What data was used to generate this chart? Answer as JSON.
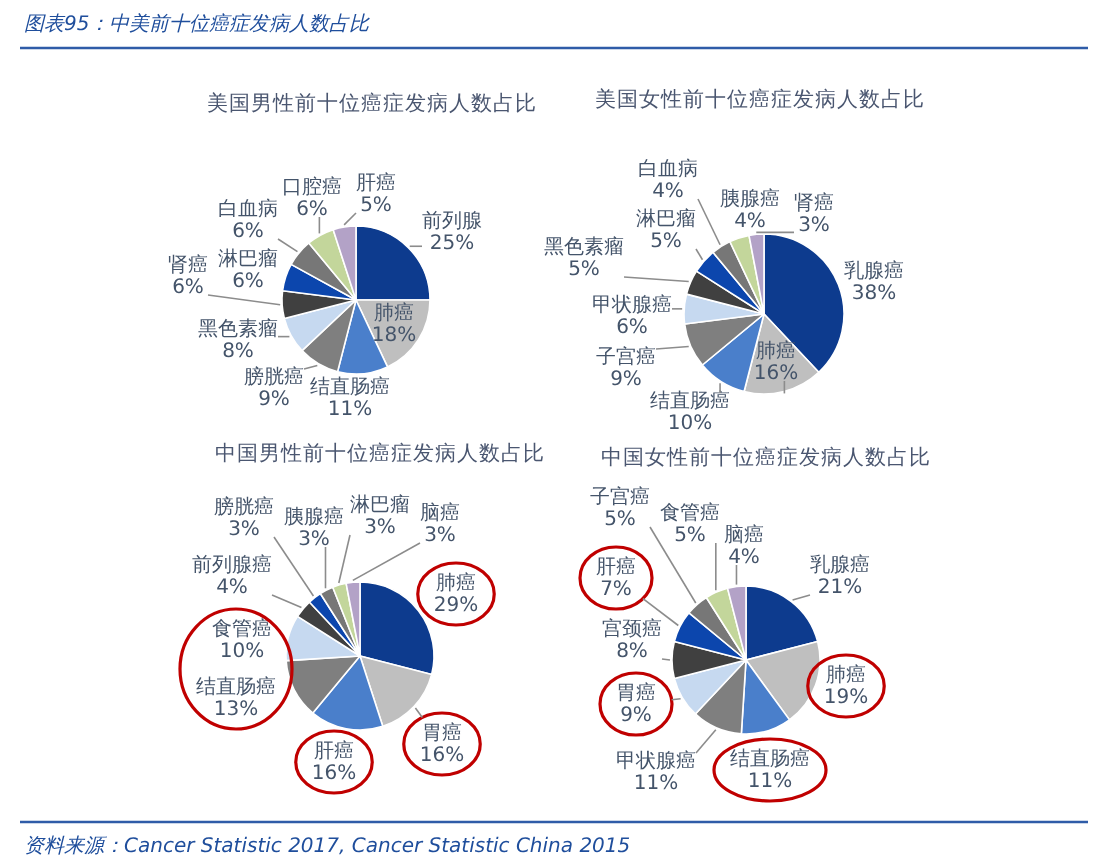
{
  "chart_data": [
    {
      "type": "pie",
      "title": "美国男性前十位癌症发病人数占比",
      "annotations": [
        "图表95：中美前十位癌症发病人数占比"
      ],
      "categories": [
        "前列腺",
        "肺癌",
        "结直肠癌",
        "膀胱癌",
        "黑色素瘤",
        "肾癌",
        "淋巴瘤",
        "白血病",
        "口腔癌",
        "肝癌"
      ],
      "values": [
        25,
        18,
        11,
        9,
        8,
        6,
        6,
        6,
        6,
        5
      ],
      "value_labels": [
        "25%",
        "18%",
        "11%",
        "9%",
        "8%",
        "6%",
        "6%",
        "6%",
        "6%",
        "5%"
      ],
      "colors": [
        "#0d3b8e",
        "#bfbfbf",
        "#4a7fcb",
        "#7f7f7f",
        "#c6d9f0",
        "#404040",
        "#0c46ad",
        "#777777",
        "#c3d69b",
        "#b3a2c7"
      ]
    },
    {
      "type": "pie",
      "title": "美国女性前十位癌症发病人数占比",
      "categories": [
        "乳腺癌",
        "肺癌",
        "结直肠癌",
        "子宫癌",
        "甲状腺癌",
        "黑色素瘤",
        "淋巴瘤",
        "白血病",
        "胰腺癌",
        "肾癌"
      ],
      "values": [
        38,
        16,
        10,
        9,
        6,
        5,
        5,
        4,
        4,
        3
      ],
      "value_labels": [
        "38%",
        "16%",
        "10%",
        "9%",
        "6%",
        "5%",
        "5%",
        "4%",
        "4%",
        "3%"
      ],
      "colors": [
        "#0d3b8e",
        "#bfbfbf",
        "#4a7fcb",
        "#7f7f7f",
        "#c6d9f0",
        "#404040",
        "#0c46ad",
        "#777777",
        "#c3d69b",
        "#b3a2c7"
      ]
    },
    {
      "type": "pie",
      "title": "中国男性前十位癌症发病人数占比",
      "categories": [
        "肺癌",
        "胃癌",
        "肝癌",
        "结直肠癌",
        "食管癌",
        "前列腺癌",
        "膀胱癌",
        "胰腺癌",
        "淋巴瘤",
        "脑癌"
      ],
      "values": [
        29,
        16,
        16,
        13,
        10,
        4,
        3,
        3,
        3,
        3
      ],
      "value_labels": [
        "29%",
        "16%",
        "16%",
        "13%",
        "10%",
        "4%",
        "3%",
        "3%",
        "3%",
        "3%"
      ],
      "colors": [
        "#0d3b8e",
        "#bfbfbf",
        "#4a7fcb",
        "#7f7f7f",
        "#c6d9f0",
        "#404040",
        "#0c46ad",
        "#777777",
        "#c3d69b",
        "#b3a2c7"
      ]
    },
    {
      "type": "pie",
      "title": "中国女性前十位癌症发病人数占比",
      "annotations": [
        "资料来源：Cancer Statistic 2017, Cancer Statistic China 2015"
      ],
      "categories": [
        "乳腺癌",
        "肺癌",
        "结直肠癌",
        "甲状腺癌",
        "胃癌",
        "宫颈癌",
        "肝癌",
        "子宫癌",
        "食管癌",
        "脑癌"
      ],
      "values": [
        21,
        19,
        11,
        11,
        9,
        8,
        7,
        5,
        5,
        4
      ],
      "value_labels": [
        "21%",
        "19%",
        "11%",
        "11%",
        "9%",
        "8%",
        "7%",
        "5%",
        "5%",
        "4%"
      ],
      "colors": [
        "#0d3b8e",
        "#bfbfbf",
        "#4a7fcb",
        "#7f7f7f",
        "#c6d9f0",
        "#404040",
        "#0c46ad",
        "#777777",
        "#c3d69b",
        "#b3a2c7"
      ]
    }
  ]
}
